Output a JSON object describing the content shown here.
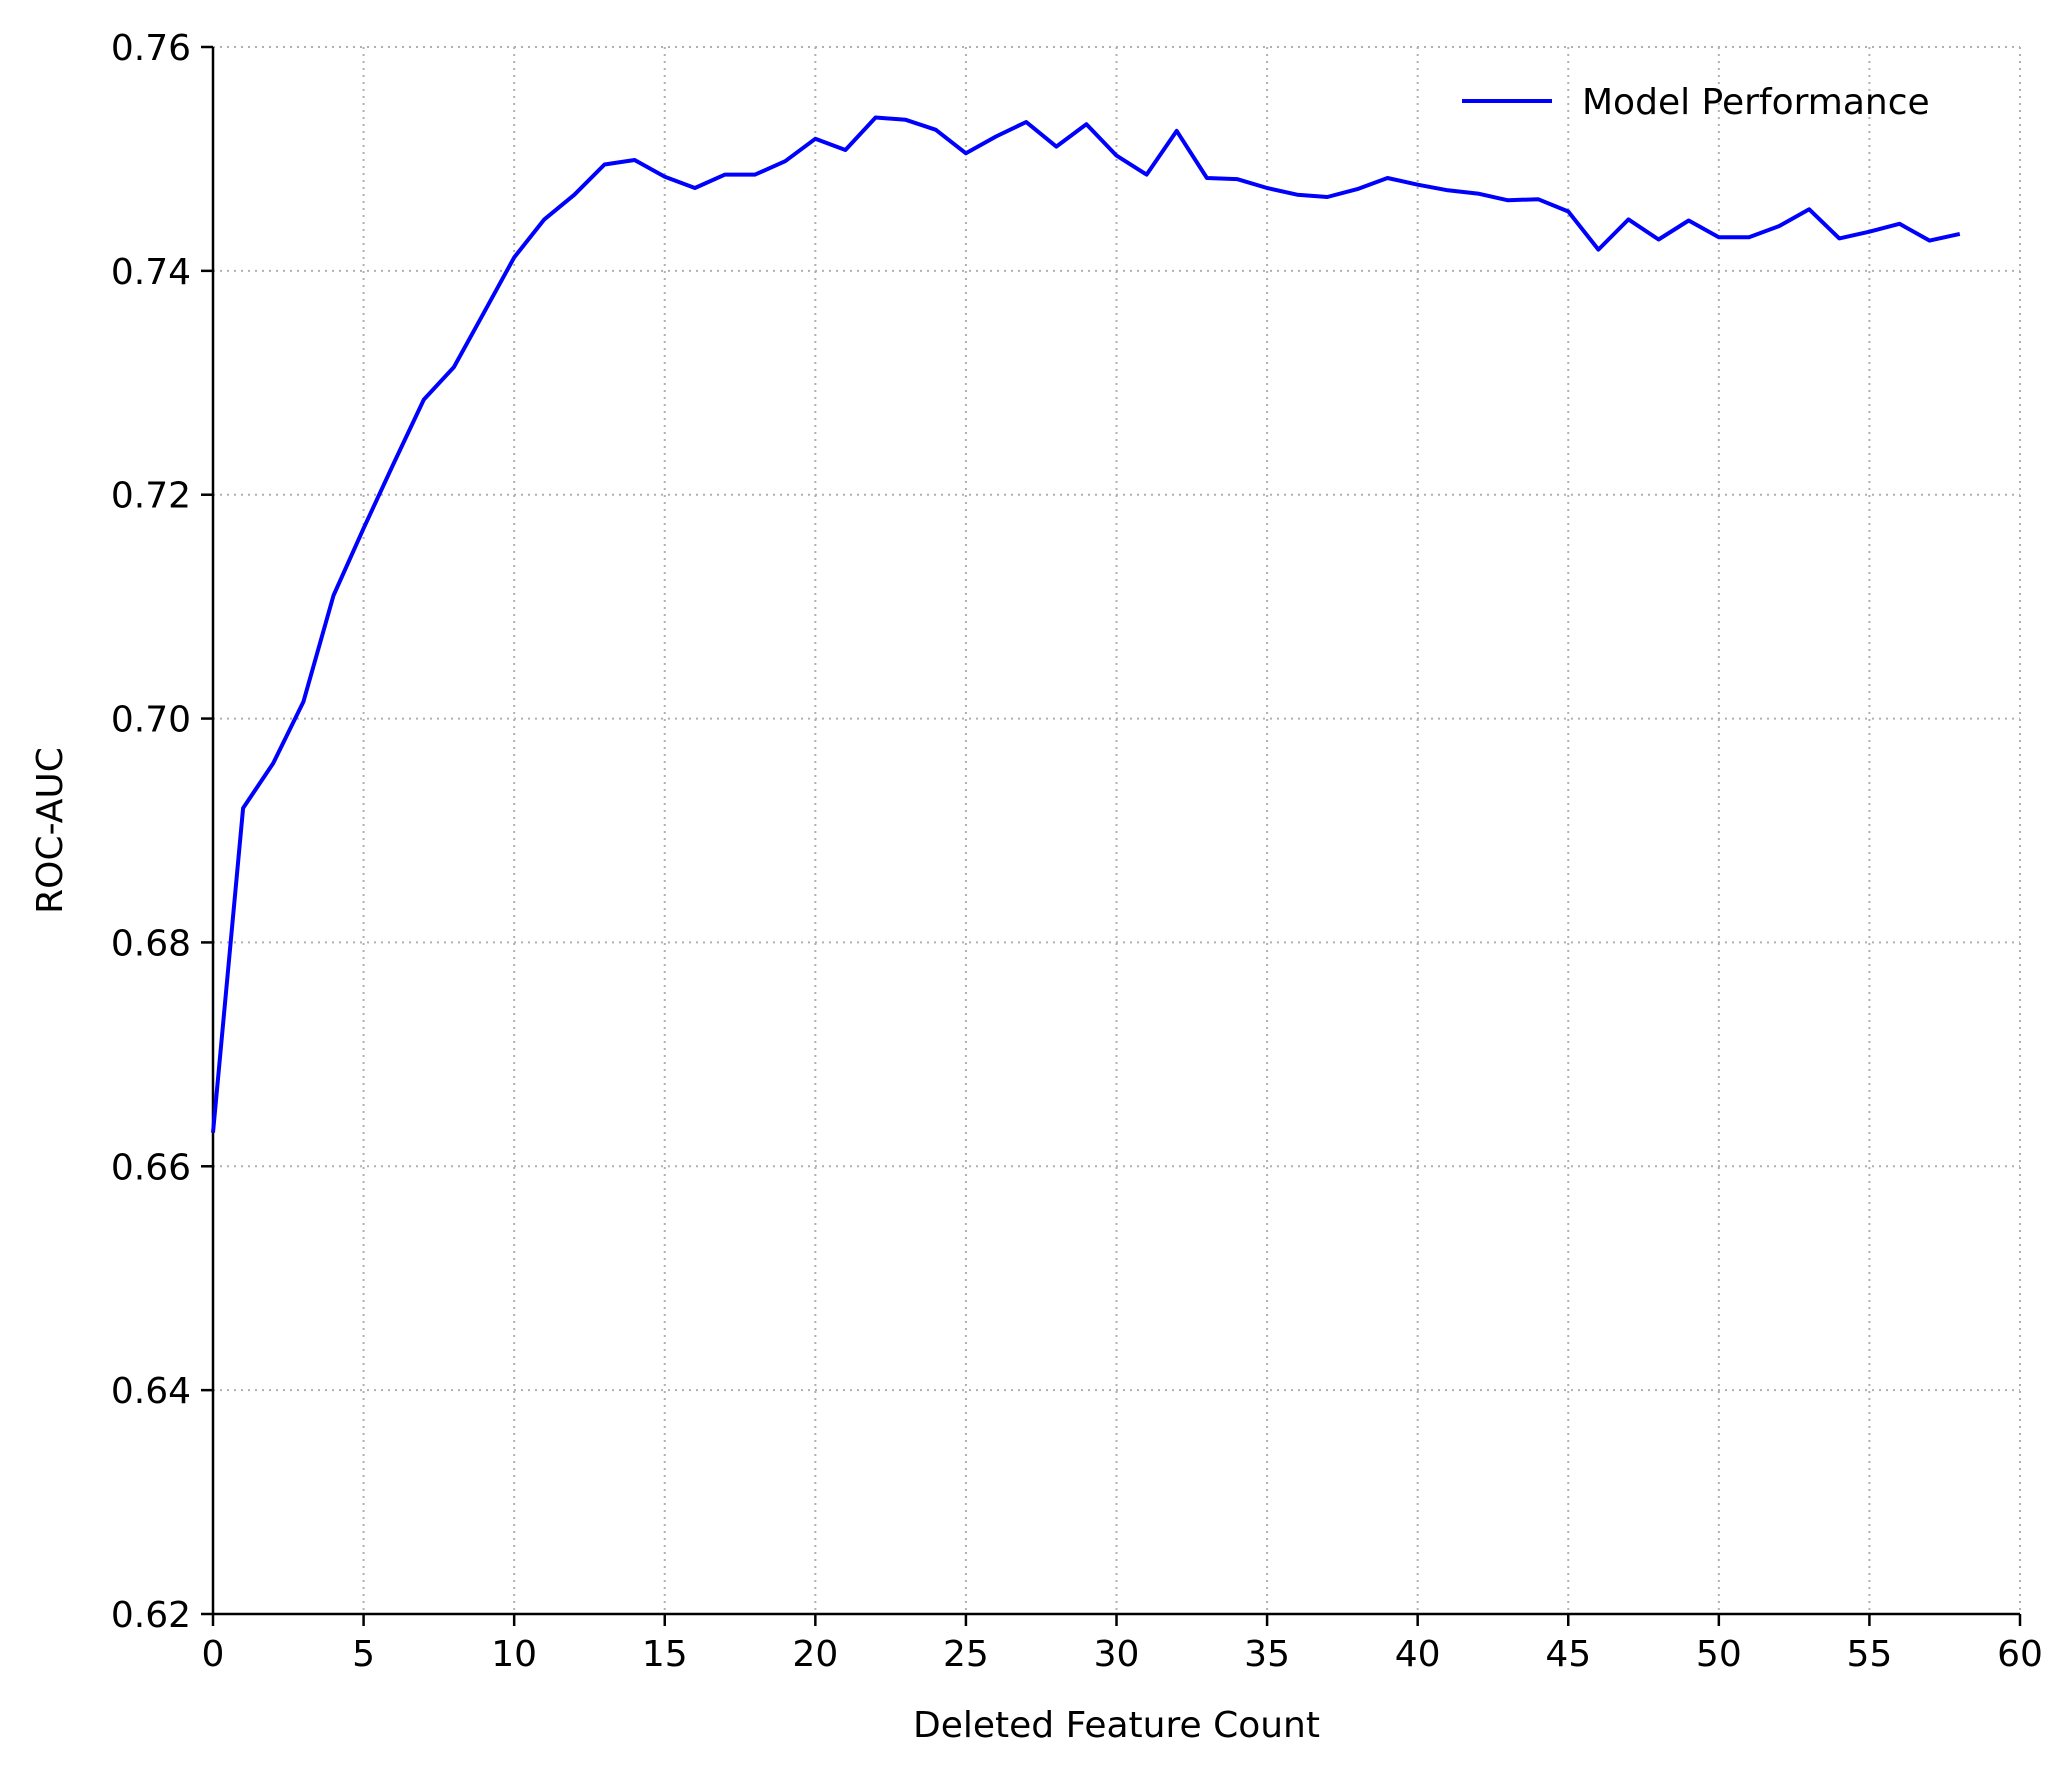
{
  "chart_data": {
    "type": "line",
    "title": "",
    "xlabel": "Deleted Feature Count",
    "ylabel": "ROC-AUC",
    "xlim": [
      0,
      60
    ],
    "ylim": [
      0.62,
      0.76
    ],
    "xticks": [
      0,
      5,
      10,
      15,
      20,
      25,
      30,
      35,
      40,
      45,
      50,
      55,
      60
    ],
    "xtick_labels": [
      "0",
      "5",
      "10",
      "15",
      "20",
      "25",
      "30",
      "35",
      "40",
      "45",
      "50",
      "55",
      "60"
    ],
    "yticks": [
      0.62,
      0.64,
      0.66,
      0.68,
      0.7,
      0.72,
      0.74,
      0.76
    ],
    "ytick_labels": [
      "0.62",
      "0.64",
      "0.66",
      "0.68",
      "0.70",
      "0.72",
      "0.74",
      "0.76"
    ],
    "grid": true,
    "grid_style": "dotted",
    "legend_position": "top-right",
    "series": [
      {
        "name": "Model Performance",
        "color": "#0000ff",
        "x": [
          0,
          1,
          2,
          3,
          4,
          5,
          6,
          7,
          8,
          9,
          10,
          11,
          12,
          13,
          14,
          15,
          16,
          17,
          18,
          19,
          20,
          21,
          22,
          23,
          24,
          25,
          26,
          27,
          28,
          29,
          30,
          31,
          32,
          33,
          34,
          35,
          36,
          37,
          38,
          39,
          40,
          41,
          42,
          43,
          44,
          45,
          46,
          47,
          48,
          49,
          50,
          51,
          52,
          53,
          54,
          55,
          56,
          57,
          58
        ],
        "y": [
          0.663,
          0.692,
          0.696,
          0.7015,
          0.711,
          0.717,
          0.7228,
          0.7285,
          0.7314,
          0.7363,
          0.7412,
          0.7446,
          0.7468,
          0.7495,
          0.7499,
          0.7484,
          0.7474,
          0.7486,
          0.7486,
          0.7498,
          0.7518,
          0.7508,
          0.7537,
          0.7535,
          0.7526,
          0.7505,
          0.752,
          0.7533,
          0.7511,
          0.7531,
          0.7503,
          0.7486,
          0.7525,
          0.7483,
          0.7482,
          0.7474,
          0.7468,
          0.7466,
          0.7473,
          0.7483,
          0.7477,
          0.7472,
          0.7469,
          0.7463,
          0.7464,
          0.7453,
          0.7419,
          0.7446,
          0.7428,
          0.7445,
          0.743,
          0.743,
          0.744,
          0.7455,
          0.7429,
          0.7435,
          0.7442,
          0.7427,
          0.7433
        ]
      }
    ]
  }
}
